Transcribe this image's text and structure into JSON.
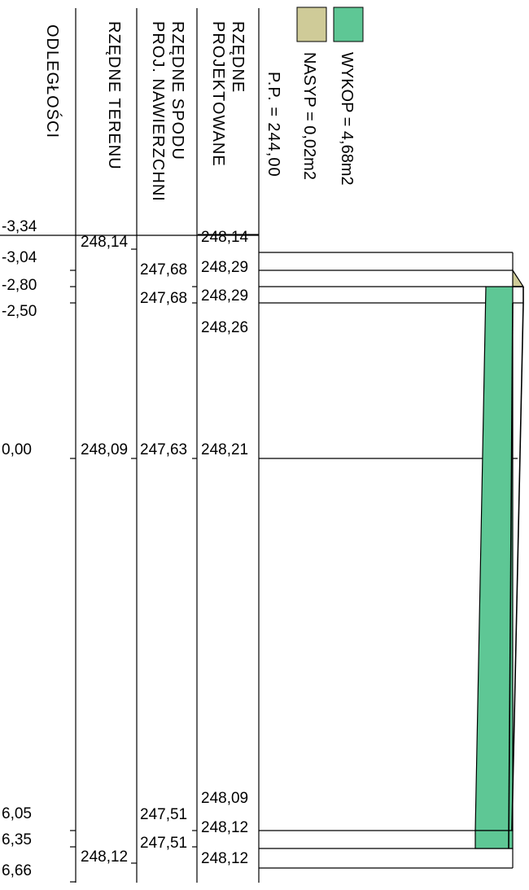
{
  "headers": {
    "distances": "ODLEGŁOŚCI",
    "terrain": "RZĘDNE TERENU",
    "subgrade_line1": "RZĘDNE SPODU",
    "subgrade_line2": "PROJ. NAWIERZCHNI",
    "design_line1": "RZĘDNE",
    "design_line2": "PROJEKTOWANE"
  },
  "datum": "P.P. = 244,00",
  "legend": {
    "cut_label": "WYKOP = 4,68m2",
    "fill_label": "NASYP = 0,02m2",
    "cut_color": "#5ec795",
    "fill_color": "#cfcb98"
  },
  "distances": [
    "-3,34",
    "-3,04",
    "-2,80",
    "-2,50",
    "0,00",
    "6,05",
    "6,35",
    "6,66"
  ],
  "terrain_elevations": [
    "248,14",
    "248,09",
    "248,12"
  ],
  "subgrade_elevations": [
    "247,68",
    "247,68",
    "247,63",
    "247,51",
    "247,51"
  ],
  "design_elevations": [
    "248,14",
    "248,29",
    "248,29",
    "248,26",
    "248,21",
    "248,09",
    "248,12",
    "248,12"
  ]
}
